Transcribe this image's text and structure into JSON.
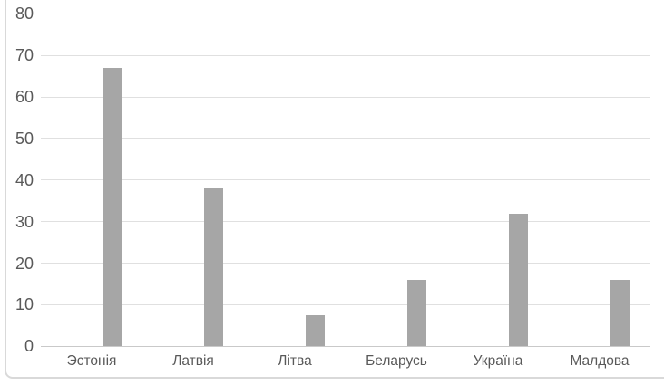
{
  "chart_data": {
    "type": "bar",
    "categories": [
      "Эстонія",
      "Латвія",
      "Літва",
      "Беларусь",
      "Україна",
      "Малдова"
    ],
    "values": [
      67,
      38,
      7.5,
      16,
      32,
      16
    ],
    "title": "",
    "xlabel": "",
    "ylabel": "",
    "ylim": [
      0,
      80
    ],
    "yticks": [
      0,
      10,
      20,
      30,
      40,
      50,
      60,
      70,
      80
    ],
    "grid": "horizontal",
    "legend": "none",
    "bar_color": "#a6a6a6",
    "gridline_color": "#e0e0e0",
    "axis_line_color": "#c9c9c9",
    "tick_label_color": "#595959",
    "frame_border_color": "#d9d9d9"
  }
}
